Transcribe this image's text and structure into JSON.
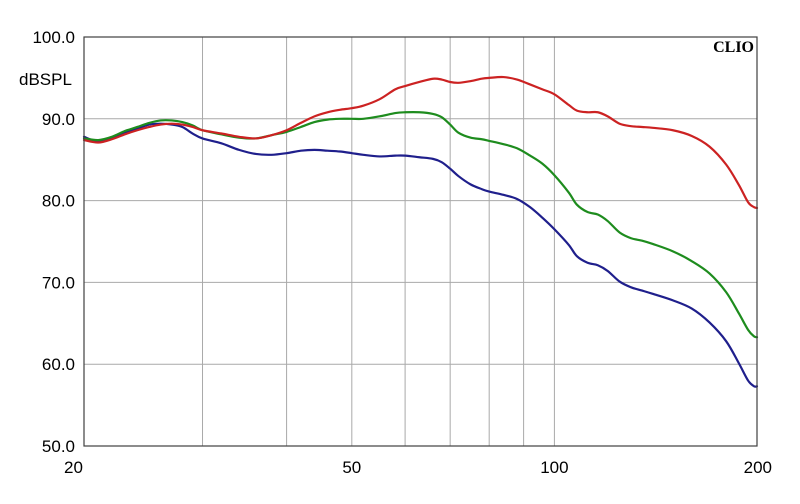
{
  "chart_data": {
    "type": "line",
    "title": "",
    "xlabel": "",
    "ylabel": "dBSPL",
    "brand": "CLIO",
    "x_scale": "log",
    "xlim": [
      20,
      200
    ],
    "ylim": [
      50,
      100
    ],
    "x_ticks": [
      20,
      50,
      100,
      200
    ],
    "x_tick_labels": [
      "20",
      "50",
      "100",
      "200"
    ],
    "x_grid": [
      30,
      40,
      50,
      60,
      70,
      80,
      90,
      100
    ],
    "y_ticks": [
      50,
      60,
      70,
      80,
      90,
      100
    ],
    "y_tick_labels": [
      "50.0",
      "60.0",
      "70.0",
      "80.0",
      "90.0",
      "100.0"
    ],
    "grid": true,
    "legend": "none",
    "series": [
      {
        "color": "#1f1f8c",
        "points": [
          [
            20,
            87.8
          ],
          [
            21,
            87.2
          ],
          [
            22,
            87.6
          ],
          [
            23,
            88.3
          ],
          [
            24,
            88.8
          ],
          [
            25,
            89.3
          ],
          [
            26,
            89.4
          ],
          [
            27,
            89.3
          ],
          [
            28,
            89.0
          ],
          [
            29,
            88.2
          ],
          [
            30,
            87.6
          ],
          [
            32,
            87.0
          ],
          [
            34,
            86.2
          ],
          [
            36,
            85.7
          ],
          [
            38,
            85.6
          ],
          [
            40,
            85.8
          ],
          [
            42,
            86.1
          ],
          [
            44,
            86.2
          ],
          [
            46,
            86.1
          ],
          [
            48,
            86.0
          ],
          [
            50,
            85.8
          ],
          [
            52,
            85.6
          ],
          [
            55,
            85.4
          ],
          [
            58,
            85.5
          ],
          [
            60,
            85.5
          ],
          [
            63,
            85.3
          ],
          [
            66,
            85.1
          ],
          [
            68,
            84.7
          ],
          [
            70,
            83.9
          ],
          [
            72,
            83.0
          ],
          [
            75,
            82.0
          ],
          [
            78,
            81.4
          ],
          [
            80,
            81.1
          ],
          [
            84,
            80.7
          ],
          [
            88,
            80.2
          ],
          [
            92,
            79.2
          ],
          [
            96,
            77.9
          ],
          [
            100,
            76.5
          ],
          [
            105,
            74.6
          ],
          [
            108,
            73.2
          ],
          [
            112,
            72.4
          ],
          [
            116,
            72.1
          ],
          [
            120,
            71.4
          ],
          [
            125,
            70.1
          ],
          [
            130,
            69.4
          ],
          [
            135,
            69.0
          ],
          [
            140,
            68.6
          ],
          [
            150,
            67.8
          ],
          [
            160,
            66.8
          ],
          [
            170,
            65.1
          ],
          [
            180,
            62.8
          ],
          [
            188,
            60.1
          ],
          [
            194,
            58.0
          ],
          [
            198,
            57.3
          ],
          [
            200,
            57.3
          ]
        ]
      },
      {
        "color": "#1e8c1e",
        "points": [
          [
            20,
            87.6
          ],
          [
            21,
            87.4
          ],
          [
            22,
            87.8
          ],
          [
            23,
            88.5
          ],
          [
            24,
            89.0
          ],
          [
            25,
            89.5
          ],
          [
            26,
            89.8
          ],
          [
            27,
            89.8
          ],
          [
            28,
            89.6
          ],
          [
            29,
            89.2
          ],
          [
            30,
            88.6
          ],
          [
            32,
            88.1
          ],
          [
            34,
            87.7
          ],
          [
            36,
            87.6
          ],
          [
            38,
            88.0
          ],
          [
            40,
            88.4
          ],
          [
            42,
            89.0
          ],
          [
            44,
            89.6
          ],
          [
            46,
            89.9
          ],
          [
            48,
            90.0
          ],
          [
            50,
            90.0
          ],
          [
            52,
            90.0
          ],
          [
            55,
            90.3
          ],
          [
            58,
            90.7
          ],
          [
            60,
            90.8
          ],
          [
            63,
            90.8
          ],
          [
            66,
            90.6
          ],
          [
            68,
            90.2
          ],
          [
            70,
            89.3
          ],
          [
            72,
            88.3
          ],
          [
            75,
            87.7
          ],
          [
            78,
            87.5
          ],
          [
            80,
            87.3
          ],
          [
            84,
            86.9
          ],
          [
            88,
            86.4
          ],
          [
            92,
            85.5
          ],
          [
            96,
            84.5
          ],
          [
            100,
            83.1
          ],
          [
            105,
            81.0
          ],
          [
            108,
            79.5
          ],
          [
            112,
            78.6
          ],
          [
            116,
            78.3
          ],
          [
            120,
            77.5
          ],
          [
            125,
            76.1
          ],
          [
            130,
            75.4
          ],
          [
            135,
            75.1
          ],
          [
            140,
            74.7
          ],
          [
            150,
            73.8
          ],
          [
            160,
            72.6
          ],
          [
            170,
            71.1
          ],
          [
            180,
            68.8
          ],
          [
            188,
            66.2
          ],
          [
            194,
            64.2
          ],
          [
            198,
            63.4
          ],
          [
            200,
            63.3
          ]
        ]
      },
      {
        "color": "#cc2222",
        "points": [
          [
            20,
            87.4
          ],
          [
            21,
            87.1
          ],
          [
            22,
            87.5
          ],
          [
            23,
            88.1
          ],
          [
            24,
            88.6
          ],
          [
            25,
            89.0
          ],
          [
            26,
            89.3
          ],
          [
            27,
            89.4
          ],
          [
            28,
            89.3
          ],
          [
            29,
            89.0
          ],
          [
            30,
            88.6
          ],
          [
            32,
            88.2
          ],
          [
            34,
            87.8
          ],
          [
            36,
            87.6
          ],
          [
            38,
            88.0
          ],
          [
            40,
            88.6
          ],
          [
            42,
            89.5
          ],
          [
            44,
            90.3
          ],
          [
            46,
            90.8
          ],
          [
            48,
            91.1
          ],
          [
            50,
            91.3
          ],
          [
            52,
            91.6
          ],
          [
            55,
            92.4
          ],
          [
            58,
            93.6
          ],
          [
            60,
            94.0
          ],
          [
            63,
            94.5
          ],
          [
            66,
            94.9
          ],
          [
            68,
            94.8
          ],
          [
            70,
            94.5
          ],
          [
            72,
            94.4
          ],
          [
            75,
            94.6
          ],
          [
            78,
            94.9
          ],
          [
            80,
            95.0
          ],
          [
            84,
            95.1
          ],
          [
            88,
            94.8
          ],
          [
            92,
            94.2
          ],
          [
            96,
            93.6
          ],
          [
            100,
            93.0
          ],
          [
            105,
            91.7
          ],
          [
            108,
            91.0
          ],
          [
            112,
            90.8
          ],
          [
            116,
            90.8
          ],
          [
            120,
            90.3
          ],
          [
            125,
            89.4
          ],
          [
            130,
            89.1
          ],
          [
            135,
            89.0
          ],
          [
            140,
            88.9
          ],
          [
            150,
            88.6
          ],
          [
            160,
            87.9
          ],
          [
            170,
            86.6
          ],
          [
            180,
            84.4
          ],
          [
            188,
            81.9
          ],
          [
            194,
            79.8
          ],
          [
            198,
            79.2
          ],
          [
            200,
            79.1
          ]
        ]
      }
    ]
  }
}
